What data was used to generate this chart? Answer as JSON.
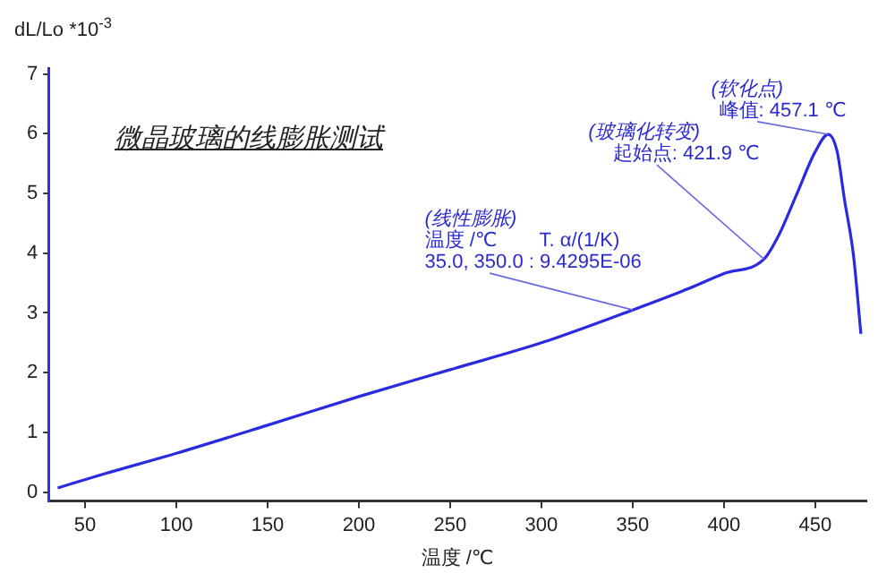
{
  "chart_data": {
    "type": "line",
    "title": "微晶玻璃的线膨胀测试",
    "xlabel": "温度 /℃",
    "ylabel": "dL/Lo *10$^{-3}$",
    "x": [
      35,
      60,
      100,
      150,
      200,
      250,
      300,
      350,
      380,
      400,
      421.9,
      430,
      440,
      450,
      457.1,
      462,
      466,
      471,
      475
    ],
    "series": [
      {
        "color": "#2a2ae0",
        "values": [
          0.07,
          0.3,
          0.65,
          1.12,
          1.6,
          2.05,
          2.5,
          3.05,
          3.4,
          3.66,
          3.9,
          4.3,
          5.0,
          5.7,
          5.99,
          5.7,
          4.9,
          3.95,
          2.65
        ]
      }
    ],
    "xlim": [
      30,
      478
    ],
    "ylim": [
      -0.15,
      7.1
    ],
    "xticks": [
      50,
      100,
      150,
      200,
      250,
      300,
      350,
      400,
      450
    ],
    "yticks": [
      0,
      1,
      2,
      3,
      4,
      5,
      6,
      7
    ],
    "grid": false,
    "legend": false,
    "marker": "none",
    "line_style": "solid",
    "annotations": [
      "(线性膨胀)",
      "温度 /℃",
      "T. α/(1/K)",
      {
        "text": "35.0, 350.0 : 9.4295E-06",
        "x": 350,
        "y": 3.05
      },
      "(玻璃化转变)",
      {
        "text": "起始点: 421.9 ℃",
        "x": 421.9,
        "y": 3.9
      },
      "(软化点)",
      {
        "text": "峰值: 457.1 ℃",
        "x": 457.1,
        "y": 5.99
      }
    ]
  }
}
